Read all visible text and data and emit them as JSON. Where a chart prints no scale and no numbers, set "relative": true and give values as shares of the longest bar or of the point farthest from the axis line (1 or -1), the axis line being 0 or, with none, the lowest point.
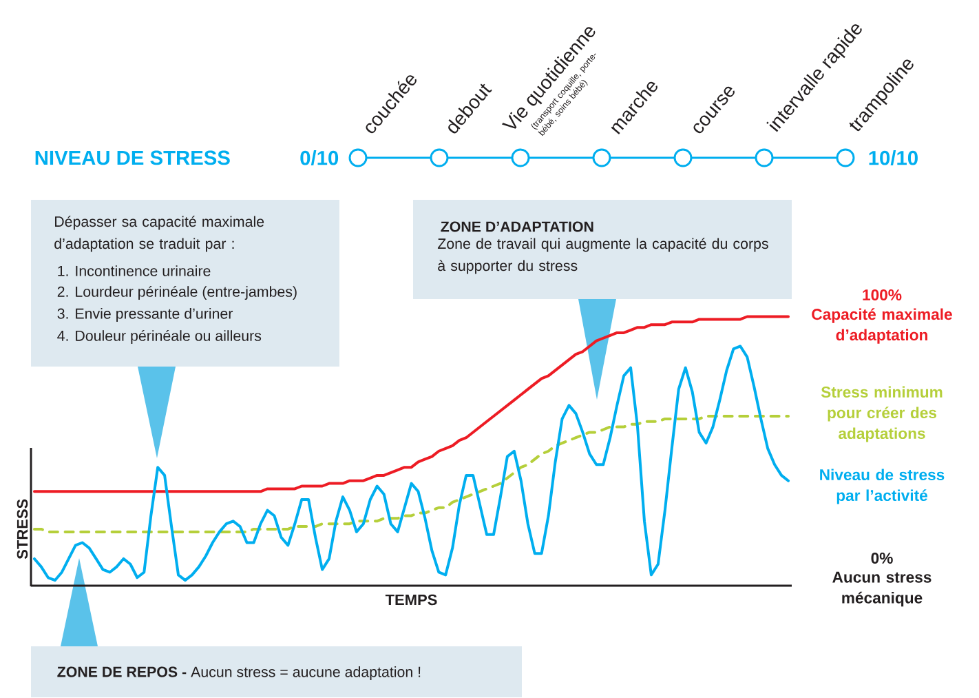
{
  "chart_data": {
    "type": "line",
    "relative": true,
    "xlabel": "TEMPS",
    "ylabel": "STRESS",
    "categories": [
      null,
      null,
      null,
      null,
      null,
      null,
      null,
      null,
      null,
      null,
      null,
      null,
      null,
      null,
      null,
      null,
      null,
      null,
      null,
      null,
      null,
      null,
      null,
      null,
      null,
      null,
      null,
      null,
      null,
      null,
      null,
      null,
      null,
      null,
      null,
      null,
      null,
      null,
      null,
      null,
      null,
      null,
      null,
      null,
      null,
      null,
      null,
      null,
      null,
      null,
      null,
      null,
      null,
      null,
      null,
      null,
      null,
      null,
      null,
      null,
      null,
      null,
      null,
      null,
      null,
      null,
      null,
      null,
      null,
      null,
      null,
      null,
      null,
      null,
      null,
      null,
      null,
      null,
      null,
      null,
      null,
      null,
      null,
      null,
      null,
      null,
      null,
      null,
      null,
      null,
      null,
      null,
      null,
      null,
      null,
      null,
      null,
      null,
      null,
      null,
      null,
      null,
      null,
      null,
      null,
      null,
      null,
      null,
      null,
      null,
      null
    ],
    "series": [
      {
        "name": "Capacité maximale d’adaptation",
        "color": "#ed1c24",
        "values": [
          0.35,
          0.35,
          0.35,
          0.35,
          0.35,
          0.35,
          0.35,
          0.35,
          0.35,
          0.35,
          0.35,
          0.35,
          0.35,
          0.35,
          0.35,
          0.35,
          0.35,
          0.35,
          0.35,
          0.35,
          0.35,
          0.35,
          0.35,
          0.35,
          0.35,
          0.35,
          0.35,
          0.35,
          0.35,
          0.35,
          0.35,
          0.35,
          0.35,
          0.35,
          0.36,
          0.36,
          0.36,
          0.36,
          0.36,
          0.37,
          0.37,
          0.37,
          0.37,
          0.38,
          0.38,
          0.38,
          0.39,
          0.39,
          0.39,
          0.4,
          0.41,
          0.41,
          0.42,
          0.43,
          0.44,
          0.44,
          0.46,
          0.47,
          0.48,
          0.5,
          0.51,
          0.52,
          0.54,
          0.55,
          0.57,
          0.59,
          0.61,
          0.63,
          0.65,
          0.67,
          0.69,
          0.71,
          0.73,
          0.75,
          0.77,
          0.78,
          0.8,
          0.82,
          0.84,
          0.86,
          0.87,
          0.89,
          0.91,
          0.92,
          0.93,
          0.94,
          0.94,
          0.95,
          0.96,
          0.96,
          0.97,
          0.97,
          0.97,
          0.98,
          0.98,
          0.98,
          0.98,
          0.99,
          0.99,
          0.99,
          0.99,
          0.99,
          0.99,
          0.99,
          1.0,
          1.0,
          1.0,
          1.0,
          1.0,
          1.0,
          1.0
        ]
      },
      {
        "name": "Stress minimum pour créer des adaptations",
        "color": "#b5cf3a",
        "line_style": "dashed",
        "values": [
          0.21,
          0.21,
          0.2,
          0.2,
          0.2,
          0.2,
          0.2,
          0.2,
          0.2,
          0.2,
          0.2,
          0.2,
          0.2,
          0.2,
          0.2,
          0.2,
          0.2,
          0.2,
          0.2,
          0.2,
          0.2,
          0.2,
          0.2,
          0.2,
          0.2,
          0.2,
          0.2,
          0.2,
          0.2,
          0.2,
          0.2,
          0.2,
          0.21,
          0.21,
          0.21,
          0.21,
          0.21,
          0.21,
          0.22,
          0.22,
          0.22,
          0.22,
          0.23,
          0.23,
          0.23,
          0.23,
          0.23,
          0.24,
          0.24,
          0.24,
          0.24,
          0.25,
          0.25,
          0.25,
          0.26,
          0.26,
          0.27,
          0.27,
          0.28,
          0.29,
          0.29,
          0.31,
          0.32,
          0.33,
          0.34,
          0.35,
          0.36,
          0.37,
          0.38,
          0.4,
          0.42,
          0.44,
          0.45,
          0.47,
          0.49,
          0.5,
          0.52,
          0.53,
          0.54,
          0.55,
          0.56,
          0.57,
          0.57,
          0.58,
          0.59,
          0.59,
          0.59,
          0.6,
          0.6,
          0.61,
          0.61,
          0.61,
          0.62,
          0.62,
          0.62,
          0.62,
          0.62,
          0.62,
          0.63,
          0.63,
          0.63,
          0.63,
          0.63,
          0.63,
          0.63,
          0.63,
          0.63,
          0.63,
          0.63,
          0.63,
          0.63
        ]
      },
      {
        "name": "Niveau de stress par l’activité",
        "color": "#00aeef",
        "values": [
          0.1,
          0.07,
          0.03,
          0.02,
          0.05,
          0.1,
          0.15,
          0.16,
          0.14,
          0.1,
          0.06,
          0.05,
          0.07,
          0.1,
          0.08,
          0.03,
          0.05,
          0.26,
          0.44,
          0.41,
          0.22,
          0.04,
          0.02,
          0.04,
          0.07,
          0.11,
          0.16,
          0.2,
          0.23,
          0.24,
          0.22,
          0.16,
          0.16,
          0.23,
          0.28,
          0.26,
          0.18,
          0.15,
          0.23,
          0.32,
          0.32,
          0.18,
          0.06,
          0.1,
          0.24,
          0.33,
          0.28,
          0.2,
          0.23,
          0.32,
          0.37,
          0.34,
          0.23,
          0.2,
          0.29,
          0.38,
          0.35,
          0.25,
          0.13,
          0.05,
          0.04,
          0.14,
          0.3,
          0.41,
          0.41,
          0.3,
          0.19,
          0.19,
          0.33,
          0.48,
          0.5,
          0.39,
          0.23,
          0.12,
          0.12,
          0.26,
          0.46,
          0.62,
          0.67,
          0.64,
          0.57,
          0.49,
          0.45,
          0.45,
          0.55,
          0.67,
          0.78,
          0.81,
          0.59,
          0.24,
          0.04,
          0.08,
          0.28,
          0.51,
          0.73,
          0.81,
          0.72,
          0.57,
          0.53,
          0.59,
          0.69,
          0.8,
          0.88,
          0.89,
          0.85,
          0.74,
          0.62,
          0.51,
          0.45,
          0.41,
          0.39
        ]
      }
    ],
    "annotations": [
      "Dépasser sa capacité maximale d’adaptation se traduit par :",
      "1. Incontinence urinaire",
      "2. Lourdeur périnéale (entre-jambes)",
      "3. Envie pressante d’uriner",
      "4. Douleur périnéale ou ailleurs",
      "ZONE D’ADAPTATION",
      "Zone de travail qui augmente la capacité du corps à supporter du stress",
      "**ZONE DE REPOS -** Aucun stress = aucune adaptation !",
      "100%",
      "0%",
      "Aucun stress mécanique",
      "NIVEAU DE STRESS",
      "0/10",
      "10/10",
      "couchée",
      "debout",
      "Vie quotidienne",
      "(transport coquille, porte-bébé, soins bébé)",
      "marche",
      "course",
      "intervalle rapide",
      "trampoline"
    ]
  }
}
